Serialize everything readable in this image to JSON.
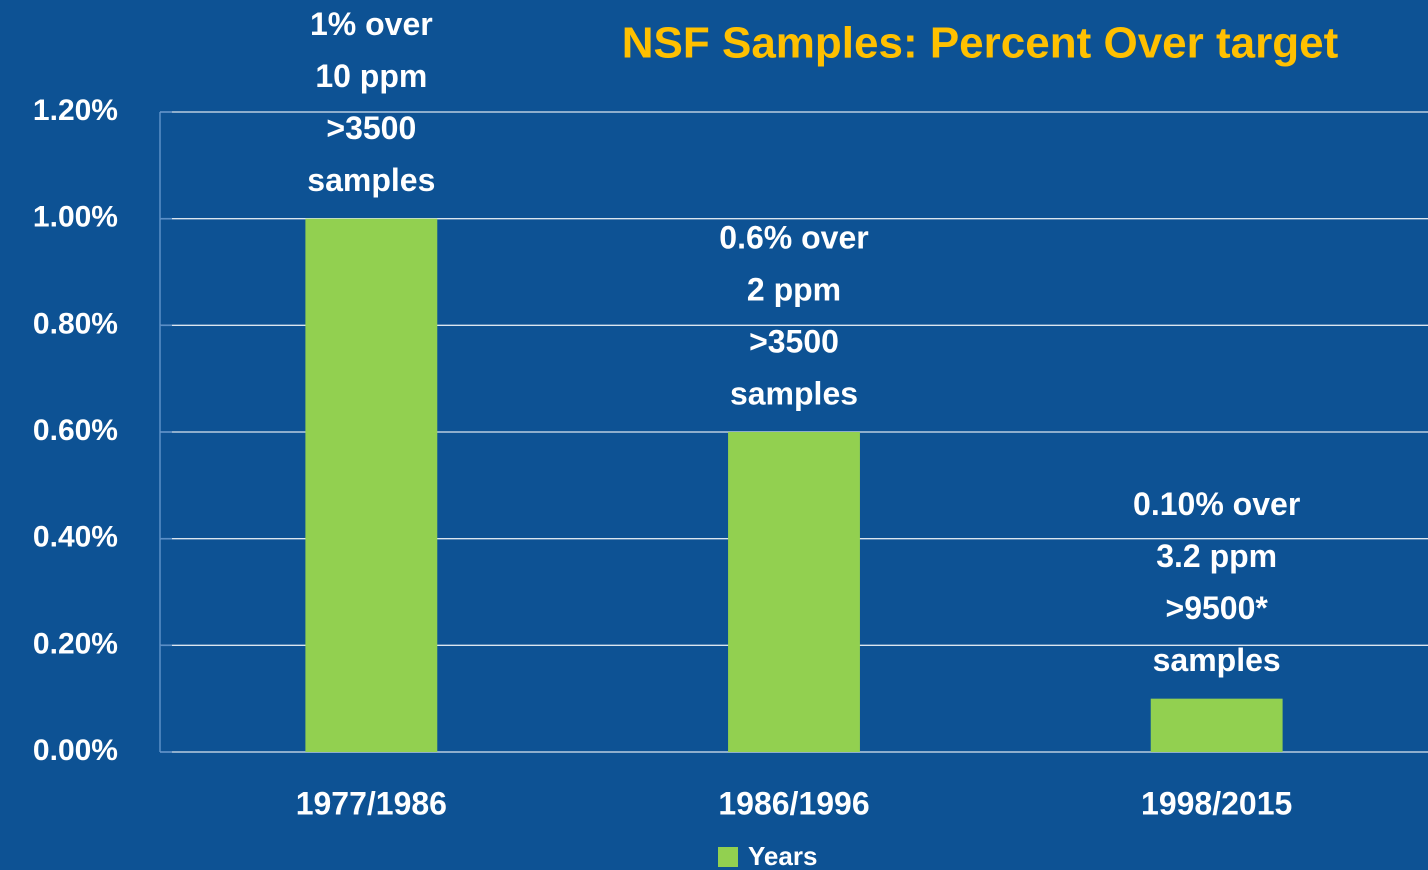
{
  "chart_data": {
    "type": "bar",
    "title": "NSF Samples: Percent Over target",
    "categories": [
      "1977/1986",
      "1986/1996",
      "1998/2015"
    ],
    "series": [
      {
        "name": "Years",
        "color": "#92d050",
        "values": [
          1,
          0.6,
          0.1
        ]
      }
    ],
    "annotations": [
      [
        "1% over",
        "10 ppm",
        ">3500",
        "samples"
      ],
      [
        "0.6% over",
        "2 ppm",
        ">3500",
        "samples"
      ],
      [
        "0.10% over",
        "3.2 ppm",
        ">9500*",
        "samples"
      ]
    ],
    "ylim": [
      0,
      1.2
    ],
    "yticks": [
      {
        "value": 0,
        "label": "0.00%"
      },
      {
        "value": 0.2,
        "label": "0.20%"
      },
      {
        "value": 0.4,
        "label": "0.40%"
      },
      {
        "value": 0.6,
        "label": "0.60%"
      },
      {
        "value": 0.8,
        "label": "0.80%"
      },
      {
        "value": 1,
        "label": "1.00%"
      },
      {
        "value": 1.2,
        "label": "1.20%"
      }
    ],
    "grid": true,
    "legend": "bottom"
  }
}
